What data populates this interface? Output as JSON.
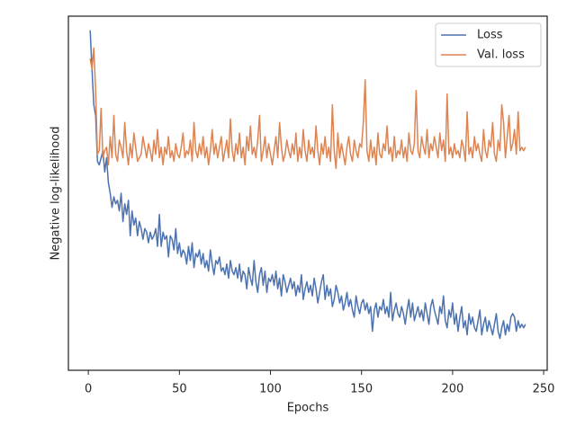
{
  "chart_data": {
    "type": "line",
    "xlabel": "Epochs",
    "ylabel": "Negative log-likelihood",
    "x": [
      1,
      2,
      3,
      4,
      5,
      6,
      7,
      8,
      9,
      10,
      11,
      12,
      13,
      14,
      15,
      16,
      17,
      18,
      19,
      20,
      21,
      22,
      23,
      24,
      25,
      26,
      27,
      28,
      29,
      30,
      31,
      32,
      33,
      34,
      35,
      36,
      37,
      38,
      39,
      40,
      41,
      42,
      43,
      44,
      45,
      46,
      47,
      48,
      49,
      50,
      51,
      52,
      53,
      54,
      55,
      56,
      57,
      58,
      59,
      60,
      61,
      62,
      63,
      64,
      65,
      66,
      67,
      68,
      69,
      70,
      71,
      72,
      73,
      74,
      75,
      76,
      77,
      78,
      79,
      80,
      81,
      82,
      83,
      84,
      85,
      86,
      87,
      88,
      89,
      90,
      91,
      92,
      93,
      94,
      95,
      96,
      97,
      98,
      99,
      100,
      101,
      102,
      103,
      104,
      105,
      106,
      107,
      108,
      109,
      110,
      111,
      112,
      113,
      114,
      115,
      116,
      117,
      118,
      119,
      120,
      121,
      122,
      123,
      124,
      125,
      126,
      127,
      128,
      129,
      130,
      131,
      132,
      133,
      134,
      135,
      136,
      137,
      138,
      139,
      140,
      141,
      142,
      143,
      144,
      145,
      146,
      147,
      148,
      149,
      150,
      151,
      152,
      153,
      154,
      155,
      156,
      157,
      158,
      159,
      160,
      161,
      162,
      163,
      164,
      165,
      166,
      167,
      168,
      169,
      170,
      171,
      172,
      173,
      174,
      175,
      176,
      177,
      178,
      179,
      180,
      181,
      182,
      183,
      184,
      185,
      186,
      187,
      188,
      189,
      190,
      191,
      192,
      193,
      194,
      195,
      196,
      197,
      198,
      199,
      200,
      201,
      202,
      203,
      204,
      205,
      206,
      207,
      208,
      209,
      210,
      211,
      212,
      213,
      214,
      215,
      216,
      217,
      218,
      219,
      220,
      221,
      222,
      223,
      224,
      225,
      226,
      227,
      228,
      229,
      230,
      231,
      232,
      233,
      234,
      235,
      236,
      237,
      238,
      239,
      240
    ],
    "series": [
      {
        "name": "Loss",
        "color": "#4c72b0",
        "values": [
          96,
          85,
          75,
          72,
          59,
          58,
          60,
          62,
          56,
          60,
          53,
          50,
          46,
          49,
          47,
          48,
          45,
          50,
          42,
          47,
          44,
          48,
          38,
          45,
          41,
          43,
          38,
          42,
          40,
          37,
          40,
          39,
          36,
          39,
          37,
          38,
          40,
          35,
          44,
          35,
          39,
          37,
          38,
          32,
          38,
          37,
          34,
          40,
          33,
          36,
          32,
          34,
          33,
          30,
          35,
          31,
          36,
          29,
          33,
          32,
          34,
          30,
          33,
          29,
          31,
          28,
          34,
          30,
          27,
          31,
          30,
          32,
          28,
          29,
          27,
          30,
          26,
          31,
          28,
          27,
          29,
          26,
          30,
          25,
          28,
          27,
          23,
          29,
          26,
          24,
          31,
          25,
          22,
          27,
          29,
          24,
          28,
          22,
          26,
          25,
          27,
          24,
          28,
          23,
          26,
          21,
          27,
          25,
          22,
          24,
          26,
          23,
          25,
          21,
          24,
          22,
          27,
          20,
          23,
          25,
          22,
          24,
          21,
          26,
          23,
          19,
          22,
          25,
          27,
          20,
          24,
          21,
          23,
          18,
          20,
          24,
          22,
          19,
          21,
          17,
          19,
          22,
          18,
          20,
          17,
          15,
          21,
          18,
          16,
          19,
          20,
          17,
          19,
          16,
          18,
          11,
          17,
          19,
          15,
          18,
          17,
          20,
          16,
          18,
          15,
          22,
          14,
          17,
          19,
          16,
          15,
          18,
          16,
          13,
          17,
          20,
          15,
          19,
          14,
          16,
          18,
          15,
          17,
          14,
          19,
          16,
          13,
          18,
          20,
          17,
          15,
          13,
          18,
          16,
          21,
          14,
          12,
          17,
          15,
          19,
          13,
          16,
          11,
          15,
          18,
          12,
          14,
          10,
          16,
          13,
          15,
          12,
          11,
          14,
          17,
          10,
          13,
          15,
          11,
          14,
          12,
          10,
          13,
          16,
          11,
          9,
          12,
          14,
          10,
          13,
          11,
          15,
          16,
          15,
          11,
          14,
          12,
          13,
          12,
          13
        ]
      },
      {
        "name": "Val. loss",
        "color": "#dd8452",
        "values": [
          88,
          85,
          91,
          79,
          61,
          62,
          74,
          60,
          62,
          63,
          58,
          66,
          60,
          72,
          61,
          59,
          65,
          63,
          60,
          70,
          62,
          58,
          64,
          60,
          67,
          63,
          59,
          60,
          61,
          66,
          63,
          60,
          64,
          62,
          59,
          65,
          61,
          68,
          60,
          63,
          58,
          63,
          61,
          66,
          60,
          62,
          59,
          64,
          61,
          60,
          63,
          67,
          60,
          62,
          61,
          65,
          59,
          70,
          62,
          60,
          64,
          61,
          66,
          60,
          63,
          58,
          62,
          68,
          61,
          64,
          60,
          63,
          66,
          59,
          62,
          65,
          60,
          71,
          62,
          59,
          64,
          61,
          67,
          60,
          63,
          58,
          66,
          62,
          69,
          61,
          63,
          60,
          65,
          72,
          59,
          62,
          66,
          60,
          64,
          61,
          58,
          62,
          66,
          60,
          70,
          63,
          59,
          61,
          65,
          62,
          60,
          64,
          61,
          67,
          59,
          63,
          60,
          68,
          62,
          59,
          65,
          61,
          63,
          60,
          69,
          62,
          58,
          64,
          61,
          66,
          60,
          63,
          59,
          75,
          62,
          57,
          67,
          60,
          64,
          61,
          58,
          63,
          66,
          61,
          59,
          65,
          62,
          60,
          64,
          63,
          70,
          82,
          62,
          59,
          65,
          60,
          63,
          58,
          67,
          61,
          60,
          64,
          62,
          69,
          61,
          63,
          59,
          66,
          60,
          62,
          61,
          65,
          60,
          63,
          59,
          67,
          62,
          61,
          64,
          79,
          62,
          60,
          66,
          63,
          61,
          68,
          60,
          64,
          62,
          66,
          63,
          60,
          67,
          62,
          65,
          59,
          78,
          61,
          63,
          60,
          64,
          61,
          62,
          60,
          65,
          63,
          59,
          73,
          61,
          63,
          60,
          66,
          62,
          64,
          61,
          59,
          68,
          62,
          60,
          65,
          63,
          70,
          61,
          59,
          65,
          62,
          75,
          70,
          60,
          66,
          72,
          62,
          64,
          68,
          61,
          73,
          62,
          63,
          62,
          63
        ]
      }
    ],
    "xlim": [
      -10.95,
      251.95
    ],
    "xticks": [
      0,
      50,
      100,
      150,
      200,
      250
    ],
    "ylim": [
      0,
      100
    ],
    "legend": "upper right"
  }
}
